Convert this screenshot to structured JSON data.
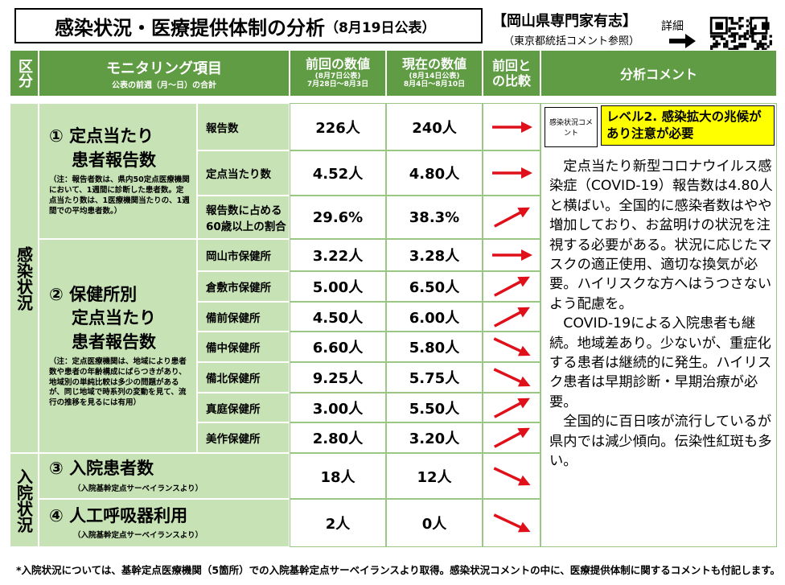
{
  "header": {
    "title": "感染状況・医療提供体制の分析",
    "date": "（8月19日公表）",
    "org": "【岡山県専門家有志】",
    "org_note": "（東京都統括コメント参照）",
    "detail": "詳細"
  },
  "table": {
    "columns": {
      "category": "区分",
      "item": "モニタリング項目",
      "item_note": "公表の前週（月～日）の合計",
      "prev": "前回の数値",
      "prev_date": "(8月7日公表)",
      "prev_range": "7月28日～8月3日",
      "curr": "現在の数値",
      "curr_date": "(8月14日公表)",
      "curr_range": "8月4日～8月10日",
      "compare": "前回との比較",
      "comment": "分析コメント"
    },
    "sections": [
      {
        "label": "感染状況",
        "groups": [
          {
            "title_lines": [
              "① 定点当たり",
              "患者報告数"
            ],
            "note": "（注：報告者数は、県内50定点医療機関において、1週間に診断した患者数。定点当たり数は、1医療機関当たりの、1週間での平均患者数。）",
            "rows": [
              {
                "label": "報告数",
                "prev": "226人",
                "curr": "240人",
                "trend": "flat"
              },
              {
                "label": "定点当たり数",
                "prev": "4.52人",
                "curr": "4.80人",
                "trend": "flat"
              },
              {
                "label": "報告数に占める60歳以上の割合",
                "prev": "29.6%",
                "curr": "38.3%",
                "trend": "up"
              }
            ]
          },
          {
            "title_lines": [
              "② 保健所別",
              "定点当たり",
              "患者報告数"
            ],
            "note": "（注：定点医療機関は、地域により患者数や患者の年齢構成にばらつきがあり、地域別の単純比較は多少の問題があるが、同じ地域で時系列の変動を見て、流行の推移を見るには有用）",
            "rows": [
              {
                "label": "岡山市保健所",
                "prev": "3.22人",
                "curr": "3.28人",
                "trend": "flat"
              },
              {
                "label": "倉敷市保健所",
                "prev": "5.00人",
                "curr": "6.50人",
                "trend": "up"
              },
              {
                "label": "備前保健所",
                "prev": "4.50人",
                "curr": "6.00人",
                "trend": "up"
              },
              {
                "label": "備中保健所",
                "prev": "6.60人",
                "curr": "5.80人",
                "trend": "down"
              },
              {
                "label": "備北保健所",
                "prev": "9.25人",
                "curr": "5.75人",
                "trend": "down"
              },
              {
                "label": "真庭保健所",
                "prev": "3.00人",
                "curr": "5.50人",
                "trend": "up"
              },
              {
                "label": "美作保健所",
                "prev": "2.80人",
                "curr": "3.20人",
                "trend": "up"
              }
            ]
          }
        ]
      },
      {
        "label": "入院状況",
        "groups": [
          {
            "title_lines": [
              "③ 入院患者数"
            ],
            "note": "（入院基幹定点サーベイランスより）",
            "rows": [
              {
                "prev": "18人",
                "curr": "12人",
                "trend": "down"
              }
            ]
          },
          {
            "title_lines": [
              "④ 人工呼吸器利用"
            ],
            "note": "（入院基幹定点サーベイランスより）",
            "rows": [
              {
                "prev": "2人",
                "curr": "0人",
                "trend": "down"
              }
            ]
          }
        ]
      }
    ]
  },
  "comment": {
    "label": "感染状況コメント",
    "level": "レベル2. 感染拡大の兆候があり注意が必要",
    "paragraphs": [
      "定点当たり新型コロナウイルス感染症（COVID-19）報告数は4.80人と横ばい。全国的に感染者数はやや増加しており、お盆明けの状況を注視する必要がある。状況に応じたマスクの適正使用、適切な換気が必要。ハイリスクな方へはうつさないよう配慮を。",
      "COVID-19による入院患者も継続。地域差あり。少ないが、重症化する患者は継続的に発生。ハイリスク患者は早期診断・早期治療が必要。",
      "全国的に百日咳が流行しているが県内では減少傾向。伝染性紅斑も多い。"
    ]
  },
  "footnote": "*入院状況については、基幹定点医療機関（5箇所）での入院基幹定点サーベイランスより取得。感染状況コメントの中に、医療提供体制に関するコメントも付記します。"
}
